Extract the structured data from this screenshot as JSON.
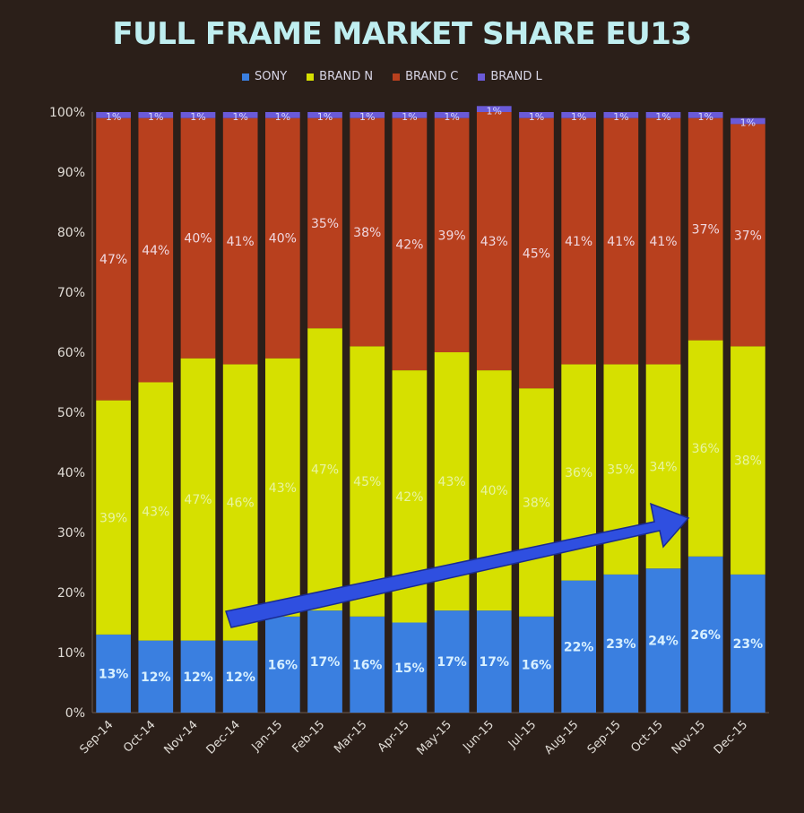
{
  "chart_data": {
    "type": "bar",
    "stacked": true,
    "title": "FULL FRAME MARKET SHARE EU13",
    "legend_position": "top",
    "categories": [
      "Sep-14",
      "Oct-14",
      "Nov-14",
      "Dec-14",
      "Jan-15",
      "Feb-15",
      "Mar-15",
      "Apr-15",
      "May-15",
      "Jun-15",
      "Jul-15",
      "Aug-15",
      "Sep-15",
      "Oct-15",
      "Nov-15",
      "Dec-15"
    ],
    "series": [
      {
        "name": "SONY",
        "color": "#3a7fe0",
        "values": [
          13,
          12,
          12,
          12,
          16,
          17,
          16,
          15,
          17,
          17,
          16,
          22,
          23,
          24,
          26,
          23
        ]
      },
      {
        "name": "BRAND N",
        "color": "#d6e000",
        "values": [
          39,
          43,
          47,
          46,
          43,
          47,
          45,
          42,
          43,
          40,
          38,
          36,
          35,
          34,
          36,
          38
        ]
      },
      {
        "name": "BRAND C",
        "color": "#b8401e",
        "values": [
          47,
          44,
          40,
          41,
          40,
          35,
          38,
          42,
          39,
          43,
          45,
          41,
          41,
          41,
          37,
          37
        ]
      },
      {
        "name": "BRAND L",
        "color": "#6a5ad8",
        "values": [
          1,
          1,
          1,
          1,
          1,
          1,
          1,
          1,
          1,
          1,
          1,
          1,
          1,
          1,
          1,
          1
        ]
      }
    ],
    "ylim": [
      0,
      100
    ],
    "yticks": [
      "0%",
      "10%",
      "20%",
      "30%",
      "40%",
      "50%",
      "60%",
      "70%",
      "80%",
      "90%",
      "100%"
    ],
    "data_label_suffix": "%",
    "annotation": "upward-trend-arrow",
    "grid": false
  }
}
